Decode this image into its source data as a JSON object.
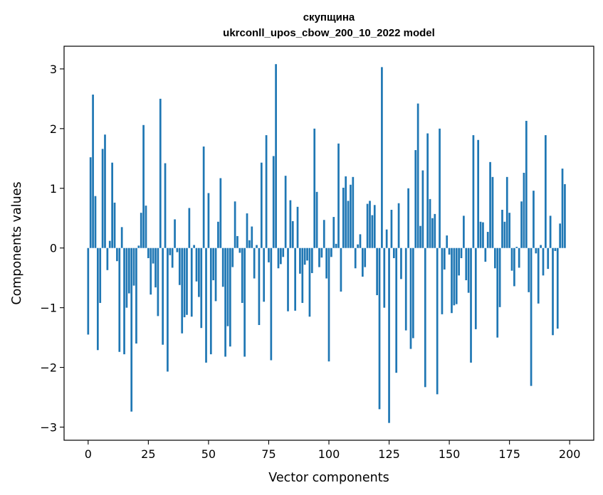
{
  "chart_data": {
    "type": "bar",
    "title_line1": "скупщина",
    "title_line2": "ukrconll_upos_cbow_200_10_2022 model",
    "xlabel": "Vector components",
    "ylabel": "Components values",
    "xlim": [
      -10,
      210
    ],
    "ylim": [
      -3.22,
      3.38
    ],
    "xticks": [
      0,
      25,
      50,
      75,
      100,
      125,
      150,
      175,
      200
    ],
    "yticks": [
      -3,
      -2,
      -1,
      0,
      1,
      2,
      3
    ],
    "ytick_labels": [
      "−3",
      "−2",
      "−1",
      "0",
      "1",
      "2",
      "3"
    ],
    "color": "#1f77b4",
    "values": [
      -1.45,
      1.52,
      2.57,
      0.87,
      -1.71,
      -0.92,
      1.66,
      1.9,
      -0.37,
      0.12,
      1.43,
      0.76,
      -0.22,
      -1.74,
      0.35,
      -1.78,
      -1.0,
      -0.76,
      -2.74,
      -0.63,
      -1.6,
      0.04,
      0.59,
      2.06,
      0.71,
      -0.17,
      -0.78,
      -0.26,
      -0.66,
      -1.14,
      2.5,
      -1.62,
      1.42,
      -2.07,
      -0.12,
      -0.33,
      0.48,
      -0.07,
      -0.62,
      -1.43,
      -1.16,
      -1.12,
      0.67,
      -1.15,
      0.05,
      -0.56,
      -0.82,
      -1.34,
      1.7,
      -1.92,
      0.92,
      -1.78,
      -0.54,
      -0.89,
      0.44,
      1.17,
      -0.65,
      -1.82,
      -1.31,
      -1.65,
      -0.32,
      0.78,
      0.2,
      -0.08,
      -0.92,
      -1.82,
      0.58,
      0.13,
      0.36,
      -0.51,
      0.05,
      -1.29,
      1.43,
      -0.9,
      1.89,
      -0.24,
      -1.88,
      1.54,
      3.08,
      -0.34,
      -0.27,
      -0.15,
      1.21,
      -1.06,
      0.8,
      0.45,
      -1.05,
      0.69,
      -0.43,
      -0.92,
      -0.28,
      -0.21,
      -1.15,
      -0.42,
      2.0,
      0.94,
      -0.32,
      -0.16,
      0.47,
      -0.51,
      -1.9,
      -0.15,
      0.52,
      0.07,
      1.75,
      -0.73,
      1.01,
      1.2,
      0.79,
      1.06,
      1.19,
      -0.34,
      0.06,
      0.23,
      -0.48,
      -0.32,
      0.74,
      0.79,
      0.55,
      0.72,
      -0.79,
      -2.7,
      3.03,
      -1.0,
      0.31,
      -2.93,
      0.64,
      -0.17,
      -2.09,
      0.75,
      -0.52,
      0.0,
      -1.38,
      1.0,
      -1.69,
      -1.51,
      1.64,
      2.42,
      0.37,
      1.3,
      -2.33,
      1.92,
      0.82,
      0.5,
      0.57,
      -2.45,
      2.0,
      -1.11,
      -0.36,
      0.21,
      -0.11,
      -1.09,
      -0.96,
      -0.94,
      -0.46,
      -0.17,
      0.54,
      -0.54,
      -0.75,
      -1.92,
      1.89,
      -1.36,
      1.81,
      0.44,
      0.43,
      -0.23,
      0.27,
      1.44,
      1.19,
      -0.34,
      -1.5,
      -0.99,
      0.64,
      0.44,
      1.19,
      0.59,
      -0.38,
      -0.64,
      0.02,
      -0.33,
      0.78,
      1.26,
      2.13,
      -0.74,
      -2.31,
      0.96,
      -0.09,
      -0.93,
      0.05,
      -0.46,
      1.89,
      -0.35,
      0.54,
      -1.46,
      -0.05,
      -1.35,
      0.41,
      1.33,
      1.07
    ]
  }
}
